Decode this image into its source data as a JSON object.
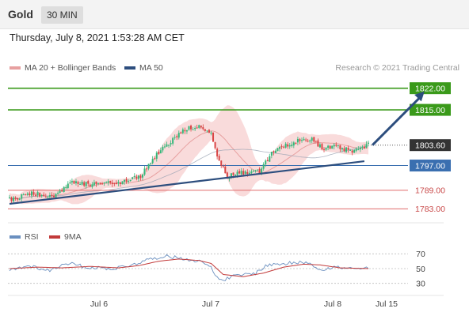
{
  "header": {
    "symbol": "Gold",
    "timeframe": "30 MIN",
    "datetime": "Thursday, July 8, 2021 1:53:28 AM CET"
  },
  "legend": {
    "ma20_label": "MA 20 + Bollinger Bands",
    "ma50_label": "MA 50",
    "rsi_label": "RSI",
    "rsi_ma_label": "9MA",
    "credit": "Research © 2021 Trading Central"
  },
  "colors": {
    "bull": "#34b87a",
    "bear": "#d94444",
    "bollinger": "#f7cfcf",
    "ma20": "#e7a0a0",
    "ma50": "#2d4e7e",
    "trend": "#2d4e7e",
    "target": "#3a9a1a",
    "support_blue": "#3a6fb0",
    "support_red": "#e06b6b",
    "rsi_line": "#6a8fbf",
    "rsi_ma": "#c23a3a"
  },
  "chart_data": [
    {
      "type": "candlestick",
      "title": "",
      "x_ticks": [
        "Jul 6",
        "Jul 7",
        "Jul 8",
        "Jul 15"
      ],
      "ylim": [
        1779,
        1826
      ],
      "last_price": "1803.60",
      "levels": [
        {
          "label": "1822.00",
          "value": 1822.0,
          "style": "target"
        },
        {
          "label": "1815.00",
          "value": 1815.0,
          "style": "target"
        },
        {
          "label": "1803.60",
          "value": 1803.6,
          "style": "last"
        },
        {
          "label": "1797.00",
          "value": 1797.0,
          "style": "support_blue"
        },
        {
          "label": "1789.00",
          "value": 1789.0,
          "style": "support_red"
        },
        {
          "label": "1783.00",
          "value": 1783.0,
          "style": "support_red"
        }
      ],
      "trendline": [
        [
          0,
          1784.6
        ],
        [
          176,
          1798.4
        ]
      ],
      "projection": [
        [
          180,
          1803.6
        ],
        [
          196,
          1821.0
        ]
      ],
      "keypoints": [
        [
          0,
          1786.0
        ],
        [
          12,
          1788.0
        ],
        [
          22,
          1786.5
        ],
        [
          30,
          1792.0
        ],
        [
          40,
          1791.0
        ],
        [
          55,
          1791.5
        ],
        [
          65,
          1793.5
        ],
        [
          72,
          1800.0
        ],
        [
          80,
          1805.0
        ],
        [
          88,
          1809.0
        ],
        [
          95,
          1810.0
        ],
        [
          100,
          1807.0
        ],
        [
          104,
          1798.5
        ],
        [
          108,
          1793.5
        ],
        [
          115,
          1794.5
        ],
        [
          124,
          1795.0
        ],
        [
          130,
          1801.0
        ],
        [
          140,
          1804.5
        ],
        [
          150,
          1806.0
        ],
        [
          155,
          1802.5
        ],
        [
          162,
          1803.0
        ],
        [
          170,
          1801.5
        ],
        [
          178,
          1803.6
        ]
      ]
    },
    {
      "type": "line",
      "title": "RSI",
      "ylim": [
        20,
        80
      ],
      "y_ticks": [
        70,
        50,
        30
      ],
      "series": [
        {
          "name": "RSI",
          "keypoints": [
            [
              0,
              48
            ],
            [
              10,
              54
            ],
            [
              20,
              47
            ],
            [
              28,
              58
            ],
            [
              38,
              52
            ],
            [
              52,
              50
            ],
            [
              60,
              55
            ],
            [
              70,
              63
            ],
            [
              76,
              67
            ],
            [
              86,
              64
            ],
            [
              94,
              60
            ],
            [
              100,
              53
            ],
            [
              104,
              33
            ],
            [
              112,
              40
            ],
            [
              122,
              44
            ],
            [
              128,
              55
            ],
            [
              138,
              57
            ],
            [
              148,
              59
            ],
            [
              154,
              49
            ],
            [
              162,
              52
            ],
            [
              172,
              49
            ],
            [
              178,
              51
            ]
          ]
        },
        {
          "name": "9MA",
          "keypoints": [
            [
              0,
              50
            ],
            [
              14,
              52
            ],
            [
              26,
              51
            ],
            [
              40,
              53
            ],
            [
              54,
              51
            ],
            [
              64,
              54
            ],
            [
              74,
              60
            ],
            [
              84,
              63
            ],
            [
              94,
              61
            ],
            [
              100,
              57
            ],
            [
              106,
              42
            ],
            [
              116,
              39
            ],
            [
              126,
              44
            ],
            [
              136,
              52
            ],
            [
              146,
              56
            ],
            [
              154,
              55
            ],
            [
              164,
              51
            ],
            [
              178,
              50
            ]
          ]
        }
      ]
    }
  ]
}
